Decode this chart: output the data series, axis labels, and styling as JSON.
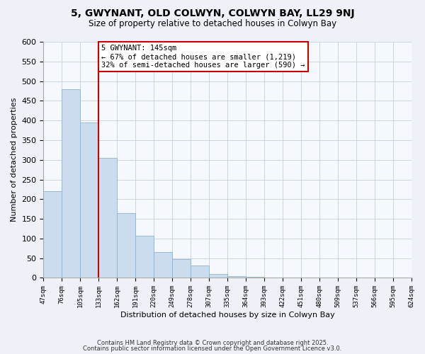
{
  "title": "5, GWYNANT, OLD COLWYN, COLWYN BAY, LL29 9NJ",
  "subtitle": "Size of property relative to detached houses in Colwyn Bay",
  "xlabel": "Distribution of detached houses by size in Colwyn Bay",
  "ylabel": "Number of detached properties",
  "bar_values": [
    220,
    480,
    395,
    305,
    165,
    107,
    65,
    47,
    32,
    10,
    5,
    2,
    1,
    0,
    0,
    0,
    0,
    0,
    0,
    0
  ],
  "bin_labels": [
    "47sqm",
    "76sqm",
    "105sqm",
    "133sqm",
    "162sqm",
    "191sqm",
    "220sqm",
    "249sqm",
    "278sqm",
    "307sqm",
    "335sqm",
    "364sqm",
    "393sqm",
    "422sqm",
    "451sqm",
    "480sqm",
    "509sqm",
    "537sqm",
    "566sqm",
    "595sqm",
    "624sqm"
  ],
  "bar_color": "#ccdcef",
  "bar_edge_color": "#8ab4d8",
  "vline_color": "#cc0000",
  "annotation_title": "5 GWYNANT: 145sqm",
  "annotation_line1": "← 67% of detached houses are smaller (1,219)",
  "annotation_line2": "32% of semi-detached houses are larger (590) →",
  "ylim": [
    0,
    600
  ],
  "yticks": [
    0,
    50,
    100,
    150,
    200,
    250,
    300,
    350,
    400,
    450,
    500,
    550,
    600
  ],
  "footer1": "Contains HM Land Registry data © Crown copyright and database right 2025.",
  "footer2": "Contains public sector information licensed under the Open Government Licence v3.0.",
  "bg_color": "#eef2f8",
  "plot_bg_color": "#f5f8fd",
  "grid_color": "#c8d0df"
}
